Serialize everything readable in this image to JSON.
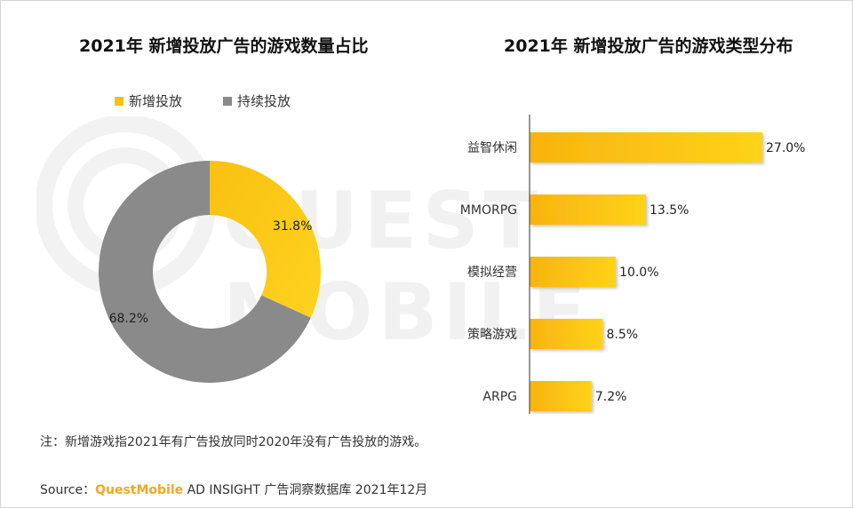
{
  "colors": {
    "new": "#f9c112",
    "new_light": "#fde26b",
    "continued": "#8a8a8a",
    "axis": "#555555",
    "brand": "#f5a623"
  },
  "legend": {
    "new_label": "新增投放",
    "continued_label": "持续投放"
  },
  "chart_data": [
    {
      "type": "pie",
      "title": "2021年 新增投放广告的游戏数量占比",
      "labels": [
        "新增投放",
        "持续投放"
      ],
      "values": [
        31.8,
        68.2
      ],
      "value_labels": [
        "31.8%",
        "68.2%"
      ],
      "unit": "%",
      "legend_position": "top"
    },
    {
      "type": "bar",
      "orientation": "horizontal",
      "title": "2021年 新增投放广告的游戏类型分布",
      "categories": [
        "益智休闲",
        "MMORPG",
        "模拟经营",
        "策略游戏",
        "ARPG"
      ],
      "values": [
        27.0,
        13.5,
        10.0,
        8.5,
        7.2
      ],
      "value_labels": [
        "27.0%",
        "13.5%",
        "10.0%",
        "8.5%",
        "7.2%"
      ],
      "unit": "%",
      "xlim": [
        0,
        27.0
      ]
    }
  ],
  "watermark": {
    "text": "QUEST MOBILE"
  },
  "footer": {
    "note": "注：新增游戏指2021年有广告投放同时2020年没有广告投放的游戏。",
    "source_prefix": "Source：",
    "source_brand": "QuestMobile",
    "source_rest": " AD INSIGHT 广告洞察数据库 2021年12月"
  }
}
